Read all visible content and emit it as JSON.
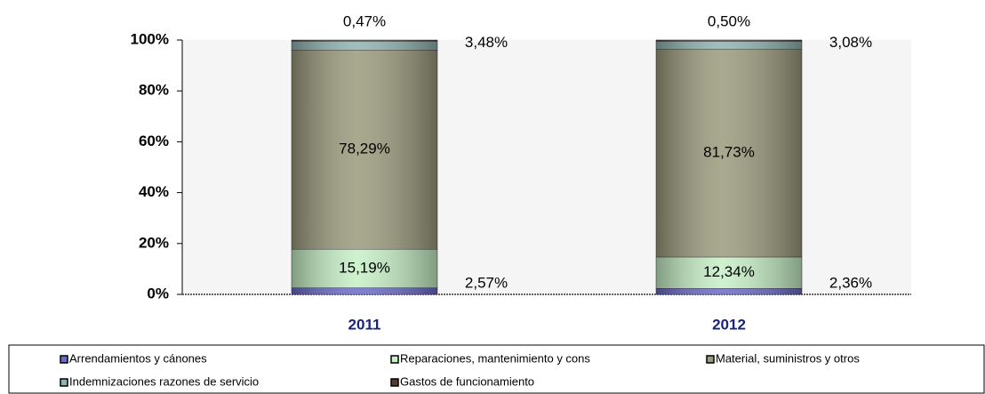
{
  "chart_data": {
    "type": "stacked_bar",
    "categories": [
      "2011",
      "2012"
    ],
    "series": [
      {
        "name": "Arrendamientos y cánones",
        "color": "#6a6ac8",
        "values": [
          2.57,
          2.36
        ],
        "value_labels": [
          "2,57%",
          "2,36%"
        ]
      },
      {
        "name": "Reparaciones, mantenimiento y cons",
        "color": "#c6efc6",
        "values": [
          15.19,
          12.34
        ],
        "value_labels": [
          "15,19%",
          "12,34%"
        ]
      },
      {
        "name": "Material, suministros y otros",
        "color": "#9a9a7c",
        "values": [
          78.29,
          81.73
        ],
        "value_labels": [
          "78,29%",
          "81,73%"
        ]
      },
      {
        "name": "Indemnizaciones razones de servicio",
        "color": "#8fb3b0",
        "values": [
          3.48,
          3.08
        ],
        "value_labels": [
          "3,48%",
          "3,08%"
        ]
      },
      {
        "name": "Gastos de funcionamiento",
        "color": "#5a3a30",
        "values": [
          0.47,
          0.5
        ],
        "value_labels": [
          "0,47%",
          "0,50%"
        ]
      }
    ],
    "ylim": [
      0,
      100
    ],
    "yticks": [
      {
        "value": 0,
        "label": "0%"
      },
      {
        "value": 20,
        "label": "20%"
      },
      {
        "value": 40,
        "label": "40%"
      },
      {
        "value": 60,
        "label": "60%"
      },
      {
        "value": 80,
        "label": "80%"
      },
      {
        "value": 100,
        "label": "100%"
      }
    ]
  }
}
